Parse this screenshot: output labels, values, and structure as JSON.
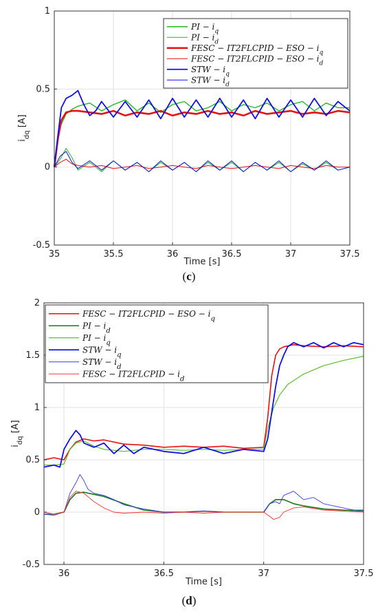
{
  "chart_data": [
    {
      "type": "line",
      "caption": "(c)",
      "caption_letter": "c",
      "xlabel": "Time [s]",
      "ylabel": "i",
      "ylabel_sub": "dq",
      "ylabel_unit": " [A]",
      "xlim": [
        35,
        37.5
      ],
      "ylim": [
        -0.5,
        1
      ],
      "xticks": [
        35,
        35.5,
        36,
        36.5,
        37,
        37.5
      ],
      "xtick_labels": [
        "35",
        "35.5",
        "36",
        "36.5",
        "37",
        "37.5"
      ],
      "yticks": [
        -0.5,
        0,
        0.5,
        1
      ],
      "ytick_labels": [
        "-0.5",
        "0",
        "0.5",
        "1"
      ],
      "grid": true,
      "legend_position": "top-right",
      "series": [
        {
          "name": "PI − i",
          "sub": "q",
          "color": "#22b822",
          "width": 1.4,
          "x": [
            35,
            35.02,
            35.05,
            35.1,
            35.15,
            35.2,
            35.3,
            35.4,
            35.5,
            35.6,
            35.7,
            35.8,
            35.9,
            36,
            36.1,
            36.2,
            36.3,
            36.4,
            36.5,
            36.6,
            36.7,
            36.8,
            36.9,
            37,
            37.1,
            37.2,
            37.3,
            37.4,
            37.5
          ],
          "y": [
            0,
            0.12,
            0.26,
            0.34,
            0.37,
            0.39,
            0.41,
            0.36,
            0.4,
            0.43,
            0.36,
            0.41,
            0.35,
            0.4,
            0.42,
            0.36,
            0.38,
            0.42,
            0.36,
            0.4,
            0.38,
            0.41,
            0.36,
            0.4,
            0.42,
            0.36,
            0.41,
            0.38,
            0.38
          ]
        },
        {
          "name": "PI − i",
          "sub": "d",
          "color": "#22b822",
          "width": 1.0,
          "x": [
            35,
            35.05,
            35.1,
            35.15,
            35.2,
            35.3,
            35.4,
            35.5,
            35.6,
            35.7,
            35.8,
            35.9,
            36,
            36.1,
            36.2,
            36.3,
            36.4,
            36.5,
            36.6,
            36.7,
            36.8,
            36.9,
            37,
            37.1,
            37.2,
            37.3,
            37.4,
            37.5
          ],
          "y": [
            0,
            0.05,
            0.12,
            0.06,
            -0.02,
            0.03,
            -0.03,
            0.04,
            -0.02,
            0.03,
            -0.03,
            0.03,
            -0.02,
            0.03,
            -0.03,
            0.03,
            -0.02,
            0.03,
            -0.03,
            0.03,
            -0.02,
            0.03,
            -0.03,
            0.02,
            -0.02,
            0.03,
            -0.02,
            0.0
          ]
        },
        {
          "name": "FESC − IT2FLCPID − ESO − i",
          "sub": "q",
          "color": "#e81010",
          "width": 2.6,
          "x": [
            35,
            35.03,
            35.06,
            35.1,
            35.15,
            35.2,
            35.3,
            35.4,
            35.5,
            35.6,
            35.7,
            35.8,
            35.9,
            36,
            36.1,
            36.2,
            36.3,
            36.4,
            36.5,
            36.6,
            36.7,
            36.8,
            36.9,
            37,
            37.1,
            37.2,
            37.3,
            37.4,
            37.5
          ],
          "y": [
            0,
            0.18,
            0.3,
            0.35,
            0.36,
            0.36,
            0.35,
            0.34,
            0.36,
            0.33,
            0.35,
            0.34,
            0.36,
            0.33,
            0.35,
            0.34,
            0.36,
            0.34,
            0.35,
            0.33,
            0.36,
            0.34,
            0.35,
            0.36,
            0.34,
            0.35,
            0.34,
            0.36,
            0.35
          ]
        },
        {
          "name": "FESC − IT2FLCPID − ESO − i",
          "sub": "d",
          "color": "#e81010",
          "width": 1.0,
          "x": [
            35,
            35.05,
            35.1,
            35.15,
            35.2,
            35.3,
            35.4,
            35.5,
            35.6,
            35.7,
            35.8,
            35.9,
            36,
            36.1,
            36.2,
            36.3,
            36.4,
            36.5,
            36.6,
            36.7,
            36.8,
            36.9,
            37,
            37.1,
            37.2,
            37.3,
            37.4,
            37.5
          ],
          "y": [
            0,
            0.03,
            0.05,
            0.02,
            0.01,
            0.0,
            0.01,
            -0.01,
            0.0,
            0.01,
            -0.01,
            0.0,
            0.01,
            0.0,
            -0.01,
            0.01,
            0.0,
            -0.01,
            0.0,
            0.01,
            0.0,
            -0.01,
            0.01,
            0.0,
            -0.01,
            0.01,
            0.0,
            0.0
          ]
        },
        {
          "name": "STW − i",
          "sub": "q",
          "color": "#1010e8",
          "width": 1.8,
          "x": [
            35,
            35.03,
            35.06,
            35.1,
            35.15,
            35.2,
            35.25,
            35.3,
            35.35,
            35.4,
            35.5,
            35.6,
            35.7,
            35.8,
            35.9,
            36,
            36.1,
            36.2,
            36.3,
            36.4,
            36.5,
            36.6,
            36.7,
            36.8,
            36.9,
            37,
            37.1,
            37.2,
            37.3,
            37.4,
            37.5
          ],
          "y": [
            0,
            0.2,
            0.38,
            0.44,
            0.46,
            0.49,
            0.4,
            0.33,
            0.36,
            0.42,
            0.32,
            0.42,
            0.32,
            0.43,
            0.31,
            0.44,
            0.32,
            0.43,
            0.32,
            0.44,
            0.32,
            0.43,
            0.31,
            0.44,
            0.32,
            0.43,
            0.32,
            0.44,
            0.33,
            0.42,
            0.36
          ]
        },
        {
          "name": "STW − i",
          "sub": "d",
          "color": "#1010e8",
          "width": 1.0,
          "x": [
            35,
            35.05,
            35.1,
            35.15,
            35.2,
            35.3,
            35.4,
            35.5,
            35.6,
            35.7,
            35.8,
            35.9,
            36,
            36.1,
            36.2,
            36.3,
            36.4,
            36.5,
            36.6,
            36.7,
            36.8,
            36.9,
            37,
            37.1,
            37.2,
            37.3,
            37.4,
            37.5
          ],
          "y": [
            0,
            0.07,
            0.1,
            0.03,
            -0.01,
            0.04,
            -0.02,
            0.04,
            -0.02,
            0.03,
            -0.03,
            0.04,
            -0.02,
            0.03,
            -0.03,
            0.04,
            -0.02,
            0.04,
            -0.03,
            0.03,
            -0.02,
            0.04,
            -0.03,
            0.03,
            -0.02,
            0.04,
            -0.02,
            0.0
          ]
        }
      ]
    },
    {
      "type": "line",
      "caption": "(d)",
      "caption_letter": "d",
      "xlabel": "Time [s]",
      "ylabel": "i",
      "ylabel_sub": "dq",
      "ylabel_unit": " [A]",
      "xlim": [
        35.9,
        37.5
      ],
      "ylim": [
        -0.5,
        2
      ],
      "xticks": [
        36,
        36.5,
        37,
        37.5
      ],
      "xtick_labels": [
        "36",
        "36.5",
        "37",
        "37.5"
      ],
      "yticks": [
        -0.5,
        0,
        0.5,
        1,
        1.5,
        2
      ],
      "ytick_labels": [
        "-0.5",
        "0",
        "0.5",
        "1",
        "1.5",
        "2"
      ],
      "grid": true,
      "legend_position": "top-left",
      "series": [
        {
          "name": "FESC − IT2FLCPID − ESO − i",
          "sub": "q",
          "color": "#e81010",
          "width": 1.6,
          "x": [
            35.9,
            35.95,
            36,
            36.03,
            36.06,
            36.1,
            36.15,
            36.2,
            36.3,
            36.4,
            36.5,
            36.6,
            36.7,
            36.8,
            36.9,
            37,
            37.02,
            37.04,
            37.06,
            37.08,
            37.1,
            37.15,
            37.2,
            37.3,
            37.4,
            37.5
          ],
          "y": [
            0.5,
            0.52,
            0.5,
            0.6,
            0.67,
            0.7,
            0.68,
            0.69,
            0.65,
            0.64,
            0.62,
            0.63,
            0.62,
            0.63,
            0.61,
            0.62,
            0.9,
            1.3,
            1.5,
            1.56,
            1.58,
            1.6,
            1.59,
            1.58,
            1.59,
            1.58
          ]
        },
        {
          "name": "PI − i",
          "sub": "d",
          "color": "#187818",
          "width": 1.6,
          "x": [
            35.9,
            35.95,
            36,
            36.03,
            36.06,
            36.1,
            36.15,
            36.2,
            36.3,
            36.4,
            36.5,
            36.6,
            36.7,
            36.8,
            36.9,
            37,
            37.03,
            37.06,
            37.1,
            37.15,
            37.2,
            37.3,
            37.4,
            37.5
          ],
          "y": [
            -0.02,
            -0.02,
            0.0,
            0.12,
            0.18,
            0.19,
            0.17,
            0.15,
            0.08,
            0.02,
            0.0,
            0.0,
            0.01,
            0.0,
            0.0,
            0.0,
            0.08,
            0.12,
            0.12,
            0.08,
            0.06,
            0.03,
            0.02,
            0.01
          ]
        },
        {
          "name": "PI − i",
          "sub": "q",
          "color": "#5cbf2a",
          "width": 1.2,
          "x": [
            35.9,
            35.95,
            36,
            36.03,
            36.06,
            36.1,
            36.15,
            36.2,
            36.3,
            36.4,
            36.5,
            36.6,
            36.7,
            36.8,
            36.9,
            37,
            37.02,
            37.05,
            37.08,
            37.12,
            37.2,
            37.3,
            37.4,
            37.5
          ],
          "y": [
            0.45,
            0.45,
            0.46,
            0.6,
            0.66,
            0.68,
            0.63,
            0.6,
            0.58,
            0.6,
            0.6,
            0.59,
            0.6,
            0.59,
            0.6,
            0.6,
            0.8,
            1.0,
            1.12,
            1.22,
            1.32,
            1.4,
            1.45,
            1.49
          ]
        },
        {
          "name": "STW − i",
          "sub": "q",
          "color": "#1010e8",
          "width": 1.8,
          "x": [
            35.9,
            35.95,
            35.98,
            36,
            36.03,
            36.06,
            36.08,
            36.1,
            36.15,
            36.2,
            36.25,
            36.3,
            36.35,
            36.4,
            36.5,
            36.6,
            36.7,
            36.8,
            36.9,
            37,
            37.02,
            37.04,
            37.06,
            37.08,
            37.1,
            37.12,
            37.15,
            37.2,
            37.25,
            37.3,
            37.35,
            37.4,
            37.45,
            37.5
          ],
          "y": [
            0.43,
            0.45,
            0.43,
            0.6,
            0.7,
            0.78,
            0.74,
            0.66,
            0.62,
            0.66,
            0.56,
            0.64,
            0.56,
            0.62,
            0.58,
            0.56,
            0.62,
            0.56,
            0.6,
            0.58,
            0.7,
            0.95,
            1.2,
            1.4,
            1.5,
            1.58,
            1.62,
            1.58,
            1.62,
            1.57,
            1.62,
            1.58,
            1.62,
            1.6
          ]
        },
        {
          "name": "STW − i",
          "sub": "d",
          "color": "#3a3aee",
          "width": 0.9,
          "x": [
            35.9,
            35.95,
            36,
            36.03,
            36.06,
            36.08,
            36.1,
            36.12,
            36.15,
            36.2,
            36.25,
            36.3,
            36.4,
            36.5,
            36.6,
            36.7,
            36.8,
            36.9,
            37,
            37.03,
            37.06,
            37.08,
            37.1,
            37.15,
            37.2,
            37.25,
            37.3,
            37.35,
            37.4,
            37.45,
            37.5
          ],
          "y": [
            -0.02,
            -0.03,
            0.0,
            0.18,
            0.28,
            0.36,
            0.3,
            0.22,
            0.18,
            0.16,
            0.12,
            0.07,
            0.03,
            0.0,
            0.0,
            0.01,
            0.0,
            0.0,
            0.0,
            0.08,
            0.1,
            0.08,
            0.16,
            0.2,
            0.12,
            0.14,
            0.08,
            0.06,
            0.04,
            0.02,
            0.02
          ]
        },
        {
          "name": "FESC − IT2FLCPID − i",
          "sub": "d",
          "color": "#ff3030",
          "width": 0.9,
          "x": [
            35.9,
            35.95,
            36,
            36.03,
            36.06,
            36.1,
            36.15,
            36.2,
            36.25,
            36.3,
            36.4,
            36.5,
            36.6,
            36.7,
            36.8,
            36.9,
            37,
            37.03,
            37.05,
            37.08,
            37.1,
            37.15,
            37.2,
            37.3,
            37.4,
            37.5
          ],
          "y": [
            0.0,
            -0.02,
            0.0,
            0.14,
            0.2,
            0.18,
            0.1,
            0.04,
            0.0,
            -0.01,
            0.0,
            -0.01,
            0.0,
            -0.01,
            0.0,
            0.0,
            0.0,
            -0.04,
            -0.07,
            -0.05,
            0.0,
            0.04,
            0.05,
            0.02,
            0.01,
            0.0
          ]
        }
      ]
    }
  ]
}
